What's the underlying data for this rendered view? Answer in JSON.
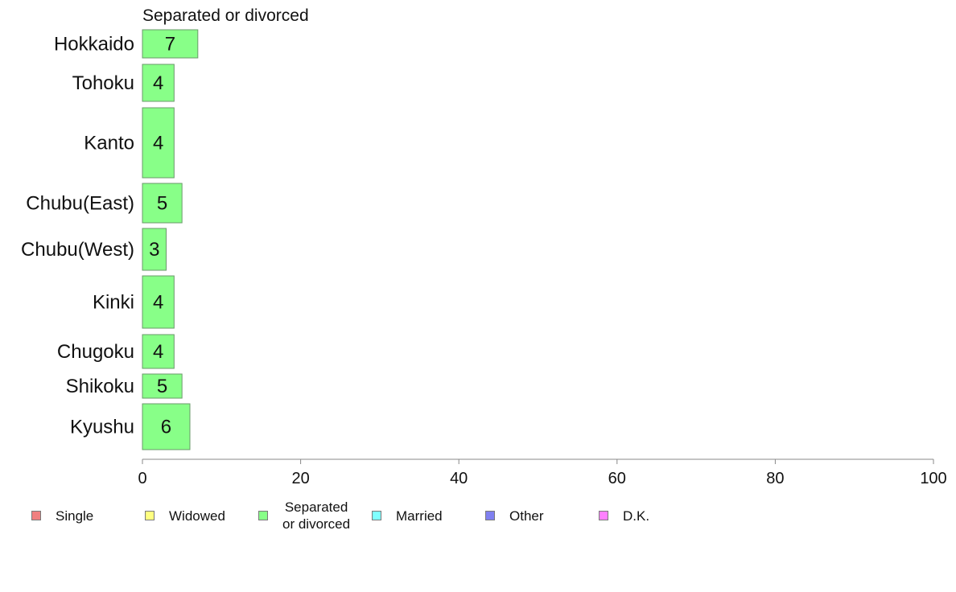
{
  "chart_data": {
    "type": "bar",
    "orientation": "horizontal",
    "title": "Separated or divorced",
    "categories": [
      "Hokkaido",
      "Tohoku",
      "Kanto",
      "Chubu(East)",
      "Chubu(West)",
      "Kinki",
      "Chugoku",
      "Shikoku",
      "Kyushu"
    ],
    "values": [
      7,
      4,
      4,
      5,
      3,
      4,
      4,
      5,
      6
    ],
    "bar_color": "#88ff88",
    "xlim": [
      0,
      100
    ],
    "xticks": [
      "0",
      "20",
      "40",
      "60",
      "80",
      "100"
    ],
    "xlabel": "",
    "ylabel": "",
    "grid": false,
    "legend_position": "bottom",
    "legend": [
      {
        "label": "Single",
        "color": "#f08080"
      },
      {
        "label": "Widowed",
        "color": "#ffff80"
      },
      {
        "label": "Separated\n or divorced",
        "color": "#88ff88"
      },
      {
        "label": "Married",
        "color": "#80ffff"
      },
      {
        "label": "Other",
        "color": "#8080f0"
      },
      {
        "label": "D.K.",
        "color": "#ff80ff"
      }
    ]
  }
}
